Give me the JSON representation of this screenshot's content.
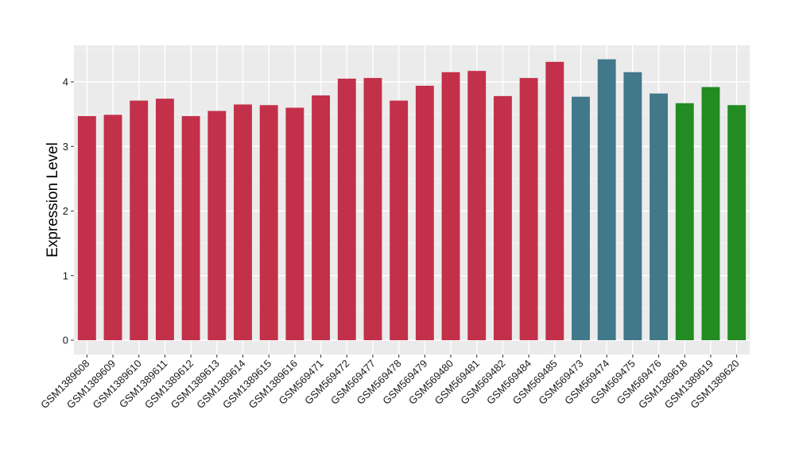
{
  "chart_data": {
    "type": "bar",
    "title": "",
    "xlabel": "",
    "ylabel": "Expression Level",
    "ylim": [
      0,
      4.4
    ],
    "yticks": [
      0,
      1,
      2,
      3,
      4
    ],
    "grid": true,
    "background": "#EBEBEB",
    "categories": [
      "GSM1389608",
      "GSM1389609",
      "GSM1389610",
      "GSM1389611",
      "GSM1389612",
      "GSM1389613",
      "GSM1389614",
      "GSM1389615",
      "GSM1389616",
      "GSM569471",
      "GSM569472",
      "GSM569477",
      "GSM569478",
      "GSM569479",
      "GSM569480",
      "GSM569481",
      "GSM569482",
      "GSM569484",
      "GSM569485",
      "GSM569473",
      "GSM569474",
      "GSM569475",
      "GSM569476",
      "GSM1389618",
      "GSM1389619",
      "GSM1389620"
    ],
    "values": [
      3.47,
      3.49,
      3.71,
      3.74,
      3.47,
      3.55,
      3.65,
      3.64,
      3.6,
      3.79,
      4.05,
      4.06,
      3.71,
      3.94,
      4.15,
      4.17,
      3.78,
      4.06,
      4.31,
      3.77,
      4.35,
      4.15,
      3.82,
      3.67,
      3.92,
      3.64
    ],
    "colors": [
      "#C3304A",
      "#C3304A",
      "#C3304A",
      "#C3304A",
      "#C3304A",
      "#C3304A",
      "#C3304A",
      "#C3304A",
      "#C3304A",
      "#C3304A",
      "#C3304A",
      "#C3304A",
      "#C3304A",
      "#C3304A",
      "#C3304A",
      "#C3304A",
      "#C3304A",
      "#C3304A",
      "#C3304A",
      "#41788A",
      "#41788A",
      "#41788A",
      "#41788A",
      "#228B22",
      "#228B22",
      "#228B22"
    ]
  }
}
